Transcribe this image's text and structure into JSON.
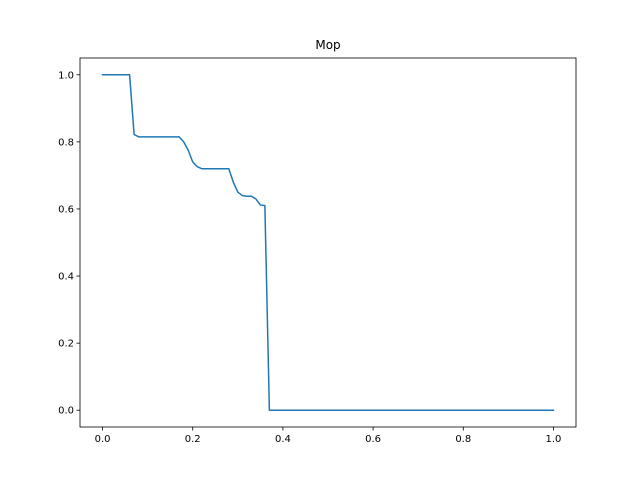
{
  "chart_data": {
    "type": "line",
    "title": "Mop",
    "xlabel": "",
    "ylabel": "",
    "xlim": [
      -0.05,
      1.05
    ],
    "ylim": [
      -0.05,
      1.05
    ],
    "grid": false,
    "x_ticks": [
      0.0,
      0.2,
      0.4,
      0.6,
      0.8,
      1.0
    ],
    "x_tick_labels": [
      "0.0",
      "0.2",
      "0.4",
      "0.6",
      "0.8",
      "1.0"
    ],
    "y_ticks": [
      0.0,
      0.2,
      0.4,
      0.6,
      0.8,
      1.0
    ],
    "y_tick_labels": [
      "0.0",
      "0.2",
      "0.4",
      "0.6",
      "0.8",
      "1.0"
    ],
    "series": [
      {
        "color": "#1f77b4",
        "x": [
          0.0,
          0.06,
          0.07,
          0.08,
          0.17,
          0.18,
          0.19,
          0.2,
          0.21,
          0.22,
          0.27,
          0.28,
          0.29,
          0.3,
          0.31,
          0.32,
          0.33,
          0.34,
          0.35,
          0.36,
          0.37,
          1.0
        ],
        "y": [
          1.0,
          1.0,
          0.822,
          0.815,
          0.815,
          0.8,
          0.775,
          0.74,
          0.726,
          0.72,
          0.72,
          0.72,
          0.68,
          0.65,
          0.64,
          0.638,
          0.638,
          0.63,
          0.612,
          0.61,
          0.0,
          0.0
        ]
      }
    ]
  }
}
